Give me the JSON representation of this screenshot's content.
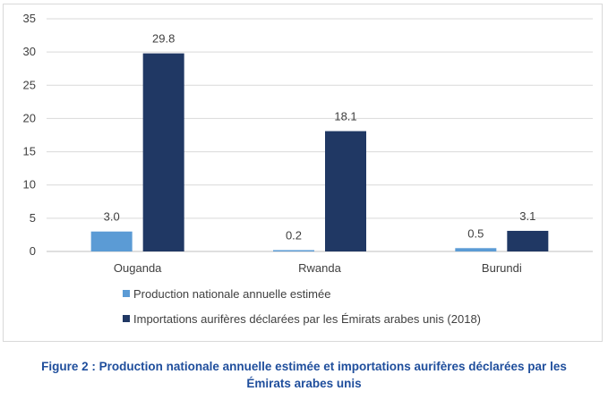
{
  "chart_data": {
    "type": "bar",
    "categories": [
      "Ouganda",
      "Rwanda",
      "Burundi"
    ],
    "series": [
      {
        "name": "Production nationale annuelle estimée",
        "values": [
          3.0,
          0.2,
          0.5
        ],
        "labels": [
          "3.0",
          "0.2",
          "0.5"
        ],
        "color": "#5b9bd5"
      },
      {
        "name": "Importations aurifères déclarées par les Émirats arabes unis (2018)",
        "values": [
          29.8,
          18.1,
          3.1
        ],
        "labels": [
          "29.8",
          "18.1",
          "3.1"
        ],
        "color": "#203864"
      }
    ],
    "ylim": [
      0,
      35
    ],
    "yticks": [
      "0",
      "5",
      "10",
      "15",
      "20",
      "25",
      "30",
      "35"
    ],
    "grid": true,
    "legend": "bottom-left"
  },
  "caption": {
    "line1": "Figure 2 : Production nationale annuelle estimée et importations aurifères déclarées par les",
    "line2": "Émirats arabes unis"
  }
}
